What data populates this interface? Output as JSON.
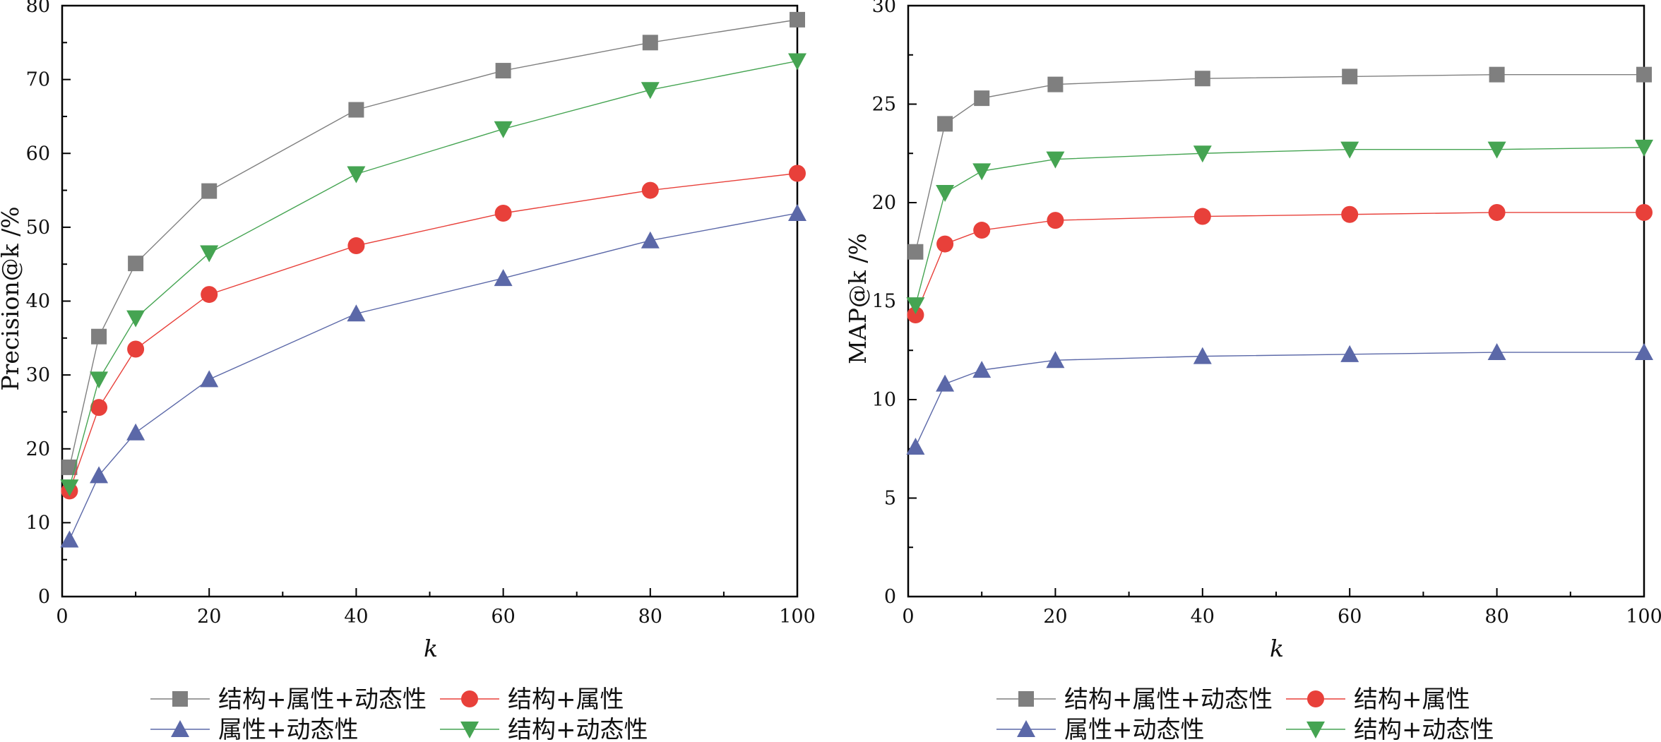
{
  "colors": {
    "structure_attr_dynamic": "#7f7f7f",
    "structure_attr": "#e8403a",
    "attr_dynamic": "#5b68a8",
    "structure_dynamic": "#45a452",
    "axis": "#000000"
  },
  "legend": {
    "items": [
      {
        "label": "结构+属性+动态性",
        "marker": "square",
        "color": "#7f7f7f"
      },
      {
        "label": "结构+属性",
        "marker": "circle",
        "color": "#e8403a"
      },
      {
        "label": "属性+动态性",
        "marker": "triangle-up",
        "color": "#5b68a8"
      },
      {
        "label": "结构+动态性",
        "marker": "triangle-down",
        "color": "#45a452"
      }
    ]
  },
  "chart_data": [
    {
      "type": "line",
      "xlabel": "k",
      "ylabel": "Precision@k /%",
      "xlim": [
        0,
        100
      ],
      "ylim": [
        0,
        80
      ],
      "xticks": [
        0,
        20,
        40,
        60,
        80,
        100
      ],
      "yticks": [
        0,
        10,
        20,
        30,
        40,
        50,
        60,
        70,
        80
      ],
      "grid": false,
      "legend_position": "bottom",
      "x": [
        1,
        5,
        10,
        20,
        40,
        60,
        80,
        100
      ],
      "series": [
        {
          "name": "结构+属性+动态性",
          "marker": "square",
          "color": "#7f7f7f",
          "values": [
            17.5,
            35.2,
            45.1,
            54.9,
            65.9,
            71.2,
            75.0,
            78.1
          ]
        },
        {
          "name": "结构+属性",
          "marker": "circle",
          "color": "#e8403a",
          "values": [
            14.3,
            25.6,
            33.5,
            40.9,
            47.5,
            51.9,
            55.0,
            57.3
          ]
        },
        {
          "name": "属性+动态性",
          "marker": "triangle-up",
          "color": "#5b68a8",
          "values": [
            7.7,
            16.4,
            22.2,
            29.4,
            38.3,
            43.1,
            48.2,
            51.9
          ]
        },
        {
          "name": "结构+动态性",
          "marker": "triangle-down",
          "color": "#45a452",
          "values": [
            14.8,
            29.4,
            37.7,
            46.5,
            57.2,
            63.3,
            68.6,
            72.5
          ]
        }
      ]
    },
    {
      "type": "line",
      "xlabel": "k",
      "ylabel": "MAP@k /%",
      "xlim": [
        0,
        100
      ],
      "ylim": [
        0,
        30
      ],
      "xticks": [
        0,
        20,
        40,
        60,
        80,
        100
      ],
      "yticks": [
        0,
        5,
        10,
        15,
        20,
        25,
        30
      ],
      "grid": false,
      "legend_position": "bottom",
      "x": [
        1,
        5,
        10,
        20,
        40,
        60,
        80,
        100
      ],
      "series": [
        {
          "name": "结构+属性+动态性",
          "marker": "square",
          "color": "#7f7f7f",
          "values": [
            17.5,
            24.0,
            25.3,
            26.0,
            26.3,
            26.4,
            26.5,
            26.5
          ]
        },
        {
          "name": "结构+属性",
          "marker": "circle",
          "color": "#e8403a",
          "values": [
            14.3,
            17.9,
            18.6,
            19.1,
            19.3,
            19.4,
            19.5,
            19.5
          ]
        },
        {
          "name": "属性+动态性",
          "marker": "triangle-up",
          "color": "#5b68a8",
          "values": [
            7.6,
            10.8,
            11.5,
            12.0,
            12.2,
            12.3,
            12.4,
            12.4
          ]
        },
        {
          "name": "结构+动态性",
          "marker": "triangle-down",
          "color": "#45a452",
          "values": [
            14.8,
            20.5,
            21.6,
            22.2,
            22.5,
            22.7,
            22.7,
            22.8
          ]
        }
      ]
    }
  ]
}
